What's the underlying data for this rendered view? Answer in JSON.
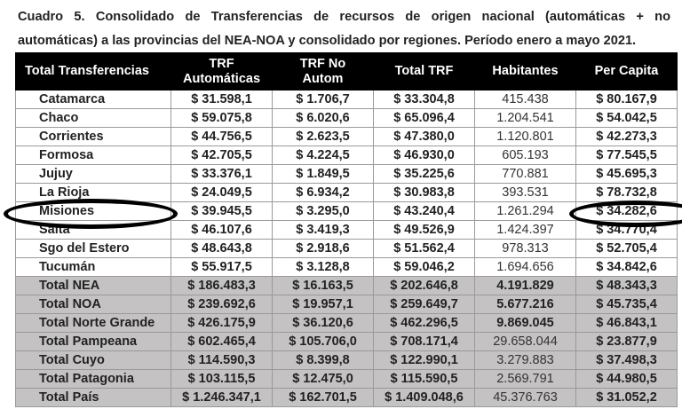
{
  "caption": {
    "line1": "Cuadro 5. Consolidado de Transferencias de recursos de origen nacional (automáticas + no",
    "line2": "automáticas) a las provincias del NEA-NOA y consolidado por regiones. Período enero a mayo 2021."
  },
  "table": {
    "headers": [
      "Total Transferencias",
      "TRF Automáticas",
      "TRF No Autom",
      "Total TRF",
      "Habitantes",
      "Per Capita"
    ],
    "header_lines": {
      "c1a": "TRF",
      "c1b": "Automáticas",
      "c2a": "TRF No",
      "c2b": "Autom"
    },
    "provinces": [
      [
        "Catamarca",
        "$ 31.598,1",
        "$ 1.706,7",
        "$ 33.304,8",
        "415.438",
        "$ 80.167,9"
      ],
      [
        "Chaco",
        "$ 59.075,8",
        "$ 6.020,6",
        "$ 65.096,4",
        "1.204.541",
        "$ 54.042,5"
      ],
      [
        "Corrientes",
        "$ 44.756,5",
        "$ 2.623,5",
        "$ 47.380,0",
        "1.120.801",
        "$ 42.273,3"
      ],
      [
        "Formosa",
        "$ 42.705,5",
        "$ 4.224,5",
        "$ 46.930,0",
        "605.193",
        "$ 77.545,5"
      ],
      [
        "Jujuy",
        "$ 33.376,1",
        "$ 1.849,5",
        "$ 35.225,6",
        "770.881",
        "$ 45.695,3"
      ],
      [
        "La Rioja",
        "$ 24.049,5",
        "$ 6.934,2",
        "$ 30.983,8",
        "393.531",
        "$ 78.732,8"
      ],
      [
        "Misiones",
        "$ 39.945,5",
        "$ 3.295,0",
        "$ 43.240,4",
        "1.261.294",
        "$ 34.282,6"
      ],
      [
        "Salta",
        "$ 46.107,6",
        "$ 3.419,3",
        "$ 49.526,9",
        "1.424.397",
        "$ 34.770,4"
      ],
      [
        "Sgo del Estero",
        "$ 48.643,8",
        "$ 2.918,6",
        "$ 51.562,4",
        "978.313",
        "$ 52.705,4"
      ],
      [
        "Tucumán",
        "$ 55.917,5",
        "$ 3.128,8",
        "$ 59.046,2",
        "1.694.656",
        "$ 34.842,6"
      ]
    ],
    "totals": [
      [
        "Total NEA",
        "$ 186.483,3",
        "$ 16.163,5",
        "$ 202.646,8",
        "4.191.829",
        "$ 48.343,3"
      ],
      [
        "Total NOA",
        "$ 239.692,6",
        "$ 19.957,1",
        "$ 259.649,7",
        "5.677.216",
        "$ 45.735,4"
      ],
      [
        "Total Norte Grande",
        "$ 426.175,9",
        "$ 36.120,6",
        "$ 462.296,5",
        "9.869.045",
        "$ 46.843,1"
      ],
      [
        "Total Pampeana",
        "$ 602.465,4",
        "$ 105.706,0",
        "$ 708.171,4",
        "29.658.044",
        "$ 23.877,9"
      ],
      [
        "Total Cuyo",
        "$ 114.590,3",
        "$ 8.399,8",
        "$ 122.990,1",
        "3.279.883",
        "$ 37.498,3"
      ],
      [
        "Total Patagonia",
        "$ 103.115,5",
        "$ 12.475,0",
        "$ 115.590,5",
        "2.569.791",
        "$ 44.980,5"
      ],
      [
        "Total País",
        "$ 1.246.347,1",
        "$ 162.701,5",
        "$ 1.409.048,6",
        "45.376.763",
        "$ 31.052,2"
      ]
    ]
  },
  "annotations": {
    "highlighted_row": "Misiones",
    "highlighted_value": "$ 34.282,6"
  },
  "colors": {
    "header_bg": "#000000",
    "total_row_bg": "#c4c2c2",
    "grid": "#9a9a9a"
  }
}
